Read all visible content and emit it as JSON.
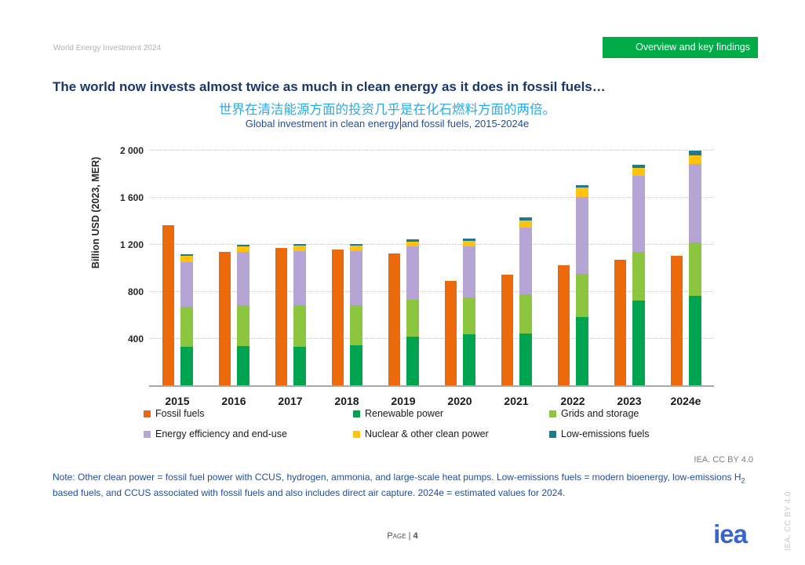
{
  "header": {
    "report_title": "World Energy Investment 2024",
    "banner_label": "Overview and key findings"
  },
  "titles": {
    "main": "The world now invests almost twice as much in clean energy as it does in fossil fuels…",
    "chinese": "世界在清洁能源方面的投资几乎是在化石燃料方面的两倍。",
    "chart_subtitle_left": "Global investment in clean energy",
    "chart_subtitle_right": " and fossil fuels, 2015-2024e"
  },
  "chart_data": {
    "type": "bar",
    "title": "Global investment in clean energy and fossil fuels, 2015-2024e",
    "xlabel": "",
    "ylabel": "Billion USD (2023, MER)",
    "ylim": [
      0,
      2047
    ],
    "grid": "horizontal-dotted",
    "legend_position": "bottom",
    "yticks": [
      {
        "value": 400,
        "label": "400"
      },
      {
        "value": 800,
        "label": "800"
      },
      {
        "value": 1200,
        "label": "1 200"
      },
      {
        "value": 1600,
        "label": "1 600"
      },
      {
        "value": 2000,
        "label": "2 000"
      }
    ],
    "categories": [
      "2015",
      "2016",
      "2017",
      "2018",
      "2019",
      "2020",
      "2021",
      "2022",
      "2023",
      "2024e"
    ],
    "series": [
      {
        "name": "Fossil fuels",
        "stack": "fossil",
        "color": "#ed6a0c",
        "values": [
          1370,
          1140,
          1175,
          1160,
          1125,
          895,
          950,
          1025,
          1075,
          1105
        ]
      },
      {
        "name": "Renewable power",
        "stack": "clean",
        "color": "#00a350",
        "values": [
          335,
          340,
          335,
          345,
          420,
          440,
          445,
          585,
          725,
          765
        ]
      },
      {
        "name": "Grids and storage",
        "stack": "clean",
        "color": "#8cc63f",
        "values": [
          340,
          345,
          355,
          340,
          315,
          315,
          335,
          370,
          415,
          455
        ]
      },
      {
        "name": "Energy efficiency and end-use",
        "stack": "clean",
        "color": "#b5a4d4",
        "values": [
          380,
          455,
          455,
          465,
          450,
          430,
          565,
          650,
          645,
          665
        ]
      },
      {
        "name": "Nuclear & other clean power",
        "stack": "clean",
        "color": "#ffc20e",
        "values": [
          55,
          50,
          50,
          45,
          45,
          47,
          65,
          80,
          70,
          72
        ]
      },
      {
        "name": "Low-emissions fuels",
        "stack": "clean",
        "color": "#1e7a8c",
        "values": [
          10,
          10,
          10,
          10,
          20,
          22,
          25,
          20,
          28,
          40
        ]
      }
    ]
  },
  "credits": {
    "license": "IEA. CC BY 4.0",
    "license_vertical": "IEA. CC BY 4.0",
    "logo": "iea"
  },
  "note": {
    "before_sub": "Note: Other clean power = fossil fuel power with CCUS, hydrogen, ammonia, and large-scale heat pumps. Low-emissions fuels = modern bioenergy, low-emissions H",
    "subscript": "2",
    "after_sub": " based fuels, and CCUS associated with fossil fuels and also includes direct air capture. 2024e = estimated values for 2024."
  },
  "footer": {
    "page_label": "Page | ",
    "page_number": "4"
  },
  "colors": {
    "banner_green": "#00ac47",
    "title_navy": "#17376e",
    "chinese_cyan": "#29abe2",
    "note_blue": "#1f4e9c",
    "logo_blue": "#3566d0",
    "gridline_gray": "#c8c8c8",
    "baseline_gray": "#a8a8a8"
  }
}
